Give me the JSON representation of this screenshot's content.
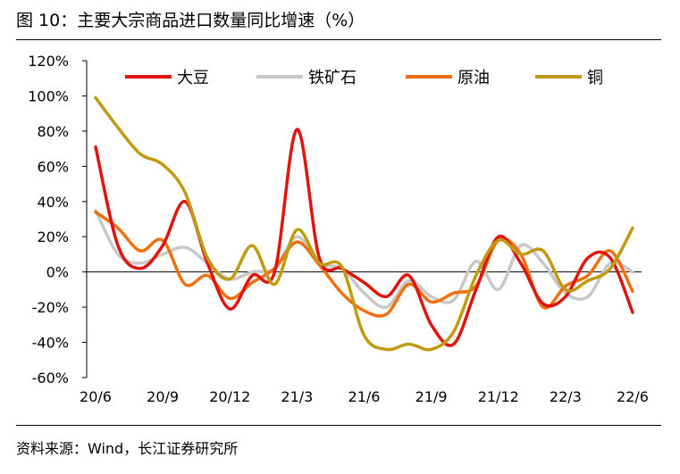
{
  "figure_title": "图 10：主要大宗商品进口数量同比增速（%）",
  "source_note": "资料来源：Wind，长江证券研究所",
  "chart_data": {
    "type": "line",
    "title": "主要大宗商品进口数量同比增速（%）",
    "xlabel": "",
    "ylabel": "",
    "ylim": [
      -60,
      120
    ],
    "yticks": [
      -60,
      -40,
      -20,
      0,
      20,
      40,
      60,
      80,
      100,
      120
    ],
    "ytick_labels": [
      "-60%",
      "-40%",
      "-20%",
      "0%",
      "20%",
      "40%",
      "60%",
      "80%",
      "100%",
      "120%"
    ],
    "x": [
      "20/6",
      "20/7",
      "20/8",
      "20/9",
      "20/10",
      "20/11",
      "20/12",
      "21/1",
      "21/2",
      "21/3",
      "21/4",
      "21/5",
      "21/6",
      "21/7",
      "21/8",
      "21/9",
      "21/10",
      "21/11",
      "21/12",
      "22/1",
      "22/2",
      "22/3",
      "22/4",
      "22/5",
      "22/6"
    ],
    "x_tick_labels": [
      "20/6",
      "20/9",
      "20/12",
      "21/3",
      "21/6",
      "21/9",
      "21/12",
      "22/3",
      "22/6"
    ],
    "x_tick_every": 3,
    "legend_position": "top",
    "series": [
      {
        "name": "大豆",
        "color": "#e0140f",
        "values": [
          71,
          15,
          2,
          15,
          40,
          5,
          -21,
          -2,
          0,
          81,
          8,
          2,
          -6,
          -14,
          -2,
          -30,
          -41,
          -10,
          20,
          5,
          -18,
          -14,
          8,
          8,
          -23
        ]
      },
      {
        "name": "铁矿石",
        "color": "#c8c8c8",
        "values": [
          35,
          10,
          5,
          10,
          14,
          5,
          -4,
          0,
          2,
          20,
          5,
          2,
          -12,
          -20,
          -5,
          -14,
          -16,
          6,
          -10,
          15,
          5,
          -12,
          -14,
          5,
          0
        ]
      },
      {
        "name": "原油",
        "color": "#f07010",
        "values": [
          34,
          25,
          12,
          18,
          -7,
          -2,
          -15,
          -6,
          2,
          17,
          4,
          -12,
          -22,
          -24,
          -7,
          -17,
          -12,
          -8,
          18,
          10,
          -20,
          -8,
          -2,
          12,
          -11
        ]
      },
      {
        "name": "铜",
        "color": "#c09a10",
        "values": [
          99,
          82,
          67,
          61,
          45,
          8,
          -4,
          15,
          -7,
          24,
          5,
          3,
          -36,
          -44,
          -41,
          -44,
          -34,
          -2,
          18,
          10,
          12,
          -10,
          -5,
          2,
          25
        ]
      }
    ]
  }
}
